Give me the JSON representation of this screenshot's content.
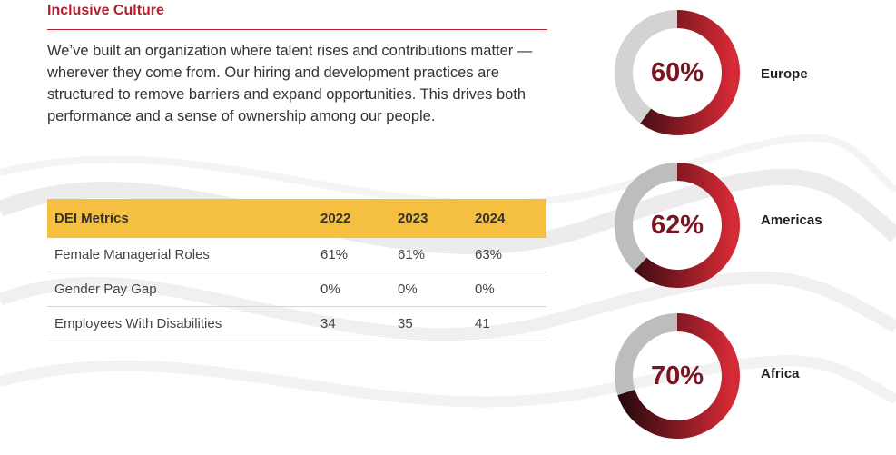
{
  "section": {
    "title": "Inclusive Culture",
    "intro": "We’ve built an organization where talent rises and contributions matter — wherever they come from. Our hiring and development practices are structured to remove barriers and expand opportunities. This drives both performance and a sense of ownership among our people."
  },
  "table": {
    "headers": [
      "DEI Metrics",
      "2022",
      "2023",
      "2024"
    ],
    "rows": [
      [
        "Female Managerial Roles",
        "61%",
        "61%",
        "63%"
      ],
      [
        "Gender Pay Gap",
        "0%",
        "0%",
        "0%"
      ],
      [
        "Employees With Disabilities",
        "34",
        "35",
        "41"
      ]
    ],
    "header_color": "#f5bf42"
  },
  "regions": [
    {
      "label": "Europe",
      "value_text": "60%",
      "value": 60
    },
    {
      "label": "Americas",
      "value_text": "62%",
      "value": 62
    },
    {
      "label": "Africa",
      "value_text": "70%",
      "value": 70
    }
  ],
  "colors": {
    "accent": "#b3212e",
    "ring_dark": "#2a0a0e",
    "ring_red": "#d42a35",
    "ring_track": "#d3d3d3"
  }
}
